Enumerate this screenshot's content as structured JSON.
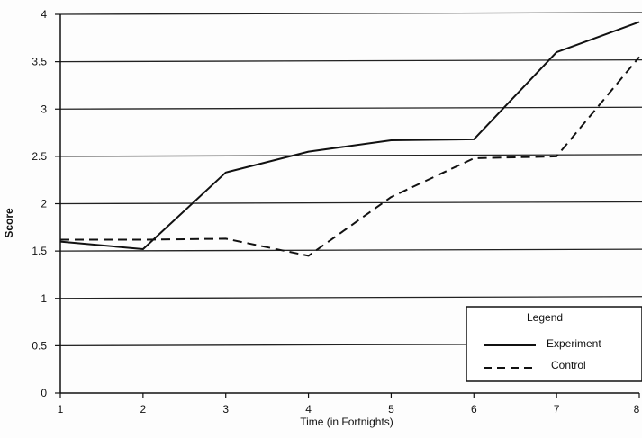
{
  "chart_data": {
    "type": "line",
    "title": "",
    "xlabel": "Time (in Fortnights)",
    "ylabel": "Score",
    "x": [
      1,
      2,
      3,
      4,
      5,
      6,
      7,
      8
    ],
    "xlim": [
      1,
      8
    ],
    "ylim": [
      0,
      4
    ],
    "xticks": [
      "1",
      "2",
      "3",
      "4",
      "5",
      "6",
      "7",
      "8"
    ],
    "yticks": [
      "0",
      "0.5",
      "1",
      "1.5",
      "2",
      "2.5",
      "3",
      "3.5",
      "4"
    ],
    "grid": "horizontal",
    "legend_title": "Legend",
    "legend_position": "bottom-right",
    "series": [
      {
        "name": "Experiment",
        "style": "solid",
        "color": "#111111",
        "values": [
          1.6,
          1.52,
          2.33,
          2.55,
          2.67,
          2.68,
          3.6,
          3.92
        ]
      },
      {
        "name": "Control",
        "style": "dashed",
        "color": "#111111",
        "values": [
          1.62,
          1.62,
          1.63,
          1.45,
          2.07,
          2.48,
          2.5,
          3.55
        ]
      }
    ]
  }
}
